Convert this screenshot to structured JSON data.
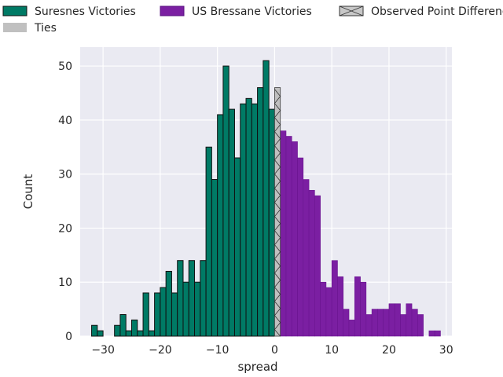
{
  "chart_data": {
    "type": "bar",
    "xlabel": "spread",
    "ylabel": "Count",
    "xlim": [
      -34,
      31
    ],
    "ylim": [
      0,
      53.5
    ],
    "xticks": [
      -30,
      -20,
      -10,
      0,
      10,
      20,
      30
    ],
    "yticks": [
      0,
      10,
      20,
      30,
      40,
      50
    ],
    "grid": true,
    "legend_position": "top",
    "colors": {
      "suresnes": "#007a65",
      "bressane": "#7b1fa2",
      "ties": "#c0c0c0",
      "background": "#eaeaf2",
      "grid": "#ffffff"
    },
    "legend": [
      {
        "key": "suresnes",
        "label": "Suresnes Victories"
      },
      {
        "key": "bressane",
        "label": "US Bressane Victories"
      },
      {
        "key": "observed",
        "label": "Observed Point Difference"
      },
      {
        "key": "ties",
        "label": "Ties"
      }
    ],
    "series": [
      {
        "name": "Suresnes Victories",
        "key": "suresnes",
        "x": [
          -32,
          -31,
          -29,
          -28,
          -27,
          -26,
          -25,
          -24,
          -23,
          -22,
          -21,
          -20,
          -19,
          -18,
          -17,
          -16,
          -15,
          -14,
          -13,
          -12,
          -11,
          -10,
          -9,
          -8,
          -7,
          -6,
          -5,
          -4,
          -3,
          -2,
          -1
        ],
        "values": [
          2,
          1,
          0,
          2,
          4,
          1,
          3,
          1,
          8,
          1,
          8,
          9,
          12,
          8,
          14,
          10,
          14,
          10,
          14,
          35,
          29,
          41,
          50,
          42,
          33,
          43,
          44,
          43,
          46,
          51,
          42
        ]
      },
      {
        "name": "Ties",
        "key": "ties",
        "x": [
          0
        ],
        "values": [
          46
        ]
      },
      {
        "name": "US Bressane Victories",
        "key": "bressane",
        "x": [
          1,
          2,
          3,
          4,
          5,
          6,
          7,
          8,
          9,
          10,
          11,
          12,
          13,
          14,
          15,
          16,
          17,
          18,
          19,
          20,
          21,
          22,
          23,
          24,
          25,
          26,
          27,
          28
        ],
        "values": [
          38,
          37,
          36,
          33,
          29,
          27,
          26,
          10,
          9,
          14,
          11,
          5,
          3,
          11,
          10,
          4,
          5,
          5,
          5,
          6,
          6,
          4,
          6,
          5,
          4,
          0,
          1,
          1
        ]
      }
    ],
    "observed_point_difference": 0
  }
}
